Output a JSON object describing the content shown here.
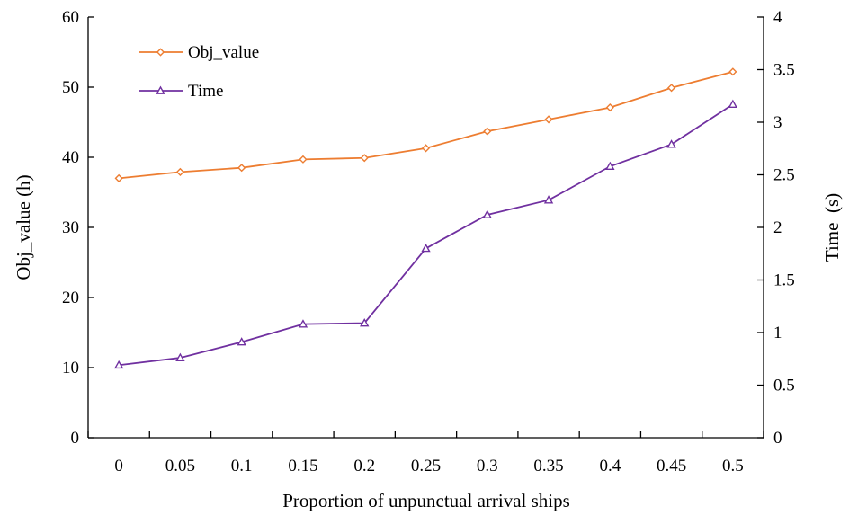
{
  "chart_data": {
    "type": "line",
    "xlabel": "Proportion of unpunctual arrival ships",
    "ylabel": "Obj_value (h)",
    "y2label": "Time  (s)",
    "categories": [
      "0",
      "0.05",
      "0.1",
      "0.15",
      "0.2",
      "0.25",
      "0.3",
      "0.35",
      "0.4",
      "0.45",
      "0.5"
    ],
    "ylim": [
      0,
      60
    ],
    "y_ticks": [
      "0",
      "10",
      "20",
      "30",
      "40",
      "50",
      "60"
    ],
    "y2lim": [
      0,
      4
    ],
    "y2_ticks": [
      "0",
      "0.5",
      "1",
      "1.5",
      "2",
      "2.5",
      "3",
      "3.5",
      "4"
    ],
    "grid": false,
    "legend_position": "top-left",
    "series": [
      {
        "name": "Obj_value",
        "axis": "left",
        "marker": "diamond",
        "color": "#ED7D31",
        "values": [
          37.0,
          37.9,
          38.5,
          39.7,
          39.9,
          41.3,
          43.7,
          45.4,
          47.1,
          49.9,
          52.2
        ]
      },
      {
        "name": "Time",
        "axis": "right",
        "marker": "triangle",
        "color": "#7030A0",
        "values": [
          0.69,
          0.76,
          0.91,
          1.08,
          1.09,
          1.8,
          2.12,
          2.26,
          2.58,
          2.79,
          3.17
        ]
      }
    ]
  }
}
